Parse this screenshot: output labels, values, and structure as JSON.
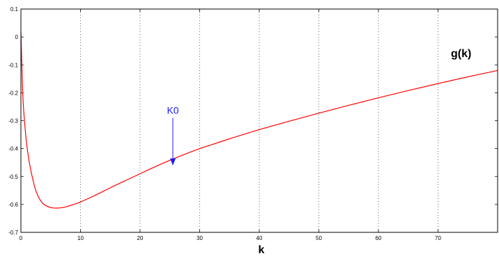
{
  "chart_data": {
    "type": "line",
    "xlabel": "k",
    "ylabel": "",
    "title": "",
    "xlim": [
      0,
      80
    ],
    "ylim": [
      -0.7,
      0.1
    ],
    "xticks": [
      0,
      10,
      20,
      30,
      40,
      50,
      60,
      70
    ],
    "yticks": [
      0.1,
      0,
      -0.1,
      -0.2,
      -0.3,
      -0.4,
      -0.5,
      -0.6,
      -0.7
    ],
    "xtick_labels": [
      "0",
      "10",
      "20",
      "30",
      "40",
      "50",
      "60",
      "70"
    ],
    "ytick_labels": [
      "0.1",
      "0",
      "-0.1",
      "-0.2",
      "-0.3",
      "-0.4",
      "-0.5",
      "-0.6",
      "-0.7"
    ],
    "grid": "vertical-dotted",
    "series": [
      {
        "name": "g(k)",
        "color": "#ff0000",
        "x": [
          0,
          0.3,
          0.6,
          1,
          1.5,
          2,
          2.5,
          3,
          3.5,
          4,
          5,
          6,
          7,
          8,
          9,
          10,
          12,
          14,
          16,
          18,
          20,
          22,
          25,
          28,
          30,
          32,
          35,
          38,
          40,
          45,
          50,
          55,
          60,
          65,
          70,
          75,
          80
        ],
        "y": [
          0.02,
          -0.2,
          -0.3,
          -0.39,
          -0.46,
          -0.51,
          -0.55,
          -0.575,
          -0.592,
          -0.602,
          -0.611,
          -0.613,
          -0.611,
          -0.606,
          -0.599,
          -0.591,
          -0.572,
          -0.551,
          -0.53,
          -0.51,
          -0.49,
          -0.47,
          -0.442,
          -0.416,
          -0.4,
          -0.386,
          -0.365,
          -0.345,
          -0.332,
          -0.302,
          -0.273,
          -0.245,
          -0.218,
          -0.192,
          -0.167,
          -0.143,
          -0.12
        ]
      }
    ],
    "annotations": [
      {
        "text": "K0",
        "x": 25.5,
        "y": -0.29,
        "arrow_to": [
          25.5,
          -0.46
        ],
        "color": "#1a1aff"
      }
    ]
  }
}
